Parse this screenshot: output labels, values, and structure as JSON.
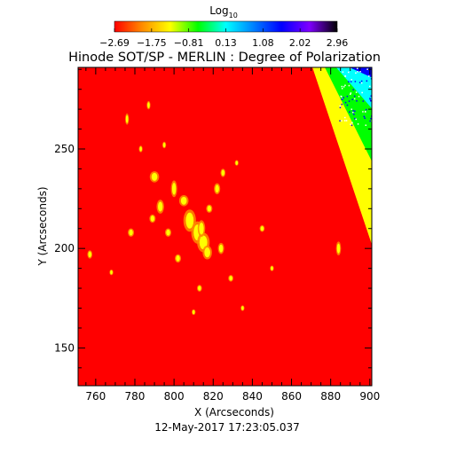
{
  "chart_data": {
    "type": "heatmap",
    "title": "Hinode SOT/SP - MERLIN : Degree of Polarization",
    "xlabel": "X (Arcseconds)",
    "ylabel": "Y (Arcseconds)",
    "xlim": [
      751,
      901
    ],
    "ylim": [
      131,
      291
    ],
    "xticks": [
      760,
      780,
      800,
      820,
      840,
      860,
      880,
      900
    ],
    "yticks": [
      150,
      200,
      250
    ],
    "timestamp": "12-May-2017 17:23:05.037",
    "colorbar": {
      "label_main": "Log",
      "label_sub": "10",
      "range": [
        -2.69,
        2.96
      ],
      "ticks": [
        "-2.69",
        "-1.75",
        "-0.81",
        "0.13",
        "1.08",
        "2.02",
        "2.96"
      ],
      "colors": [
        "#ff0000",
        "#ff8c00",
        "#ffff00",
        "#00ff00",
        "#00ffff",
        "#0080ff",
        "#0000ff",
        "#8000ff",
        "#000000"
      ]
    },
    "background_level": -2.69,
    "off_disk": {
      "edge_top_x": 870,
      "edge_bottom_x": 901,
      "edge_bottom_y": 202,
      "levels": [
        "#ffff00",
        "#00ff00",
        "#00ffff",
        "#0000ff",
        "#ffffff"
      ]
    },
    "features": [
      {
        "x": 790,
        "y": 236,
        "dx": 1.5,
        "dy": 2
      },
      {
        "x": 793,
        "y": 221,
        "dx": 1.2,
        "dy": 2.5
      },
      {
        "x": 789,
        "y": 215,
        "dx": 1,
        "dy": 1.5
      },
      {
        "x": 800,
        "y": 230,
        "dx": 1,
        "dy": 3
      },
      {
        "x": 805,
        "y": 224,
        "dx": 1.5,
        "dy": 2
      },
      {
        "x": 808,
        "y": 214,
        "dx": 2,
        "dy": 4
      },
      {
        "x": 812,
        "y": 208,
        "dx": 2,
        "dy": 4
      },
      {
        "x": 815,
        "y": 203,
        "dx": 2,
        "dy": 3.5
      },
      {
        "x": 817,
        "y": 198,
        "dx": 1.5,
        "dy": 2.5
      },
      {
        "x": 814,
        "y": 210,
        "dx": 1.2,
        "dy": 3
      },
      {
        "x": 818,
        "y": 220,
        "dx": 1,
        "dy": 1.5
      },
      {
        "x": 822,
        "y": 230,
        "dx": 1,
        "dy": 2
      },
      {
        "x": 825,
        "y": 238,
        "dx": 0.8,
        "dy": 1.5
      },
      {
        "x": 778,
        "y": 208,
        "dx": 1,
        "dy": 1.5
      },
      {
        "x": 797,
        "y": 208,
        "dx": 1,
        "dy": 1.5
      },
      {
        "x": 802,
        "y": 195,
        "dx": 1,
        "dy": 1.5
      },
      {
        "x": 824,
        "y": 200,
        "dx": 1,
        "dy": 2
      },
      {
        "x": 757,
        "y": 197,
        "dx": 0.8,
        "dy": 1.5
      },
      {
        "x": 884,
        "y": 200,
        "dx": 0.8,
        "dy": 2.5
      },
      {
        "x": 776,
        "y": 265,
        "dx": 0.6,
        "dy": 2
      },
      {
        "x": 787,
        "y": 272,
        "dx": 0.6,
        "dy": 1.5
      },
      {
        "x": 813,
        "y": 180,
        "dx": 0.8,
        "dy": 1.2
      },
      {
        "x": 829,
        "y": 185,
        "dx": 0.8,
        "dy": 1.2
      },
      {
        "x": 845,
        "y": 210,
        "dx": 0.8,
        "dy": 1.2
      },
      {
        "x": 850,
        "y": 190,
        "dx": 0.6,
        "dy": 1
      },
      {
        "x": 783,
        "y": 250,
        "dx": 0.6,
        "dy": 1.2
      },
      {
        "x": 810,
        "y": 168,
        "dx": 0.6,
        "dy": 1
      },
      {
        "x": 835,
        "y": 170,
        "dx": 0.6,
        "dy": 1
      },
      {
        "x": 768,
        "y": 188,
        "dx": 0.6,
        "dy": 1
      },
      {
        "x": 795,
        "y": 252,
        "dx": 0.6,
        "dy": 1.2
      },
      {
        "x": 832,
        "y": 243,
        "dx": 0.6,
        "dy": 1
      }
    ]
  }
}
